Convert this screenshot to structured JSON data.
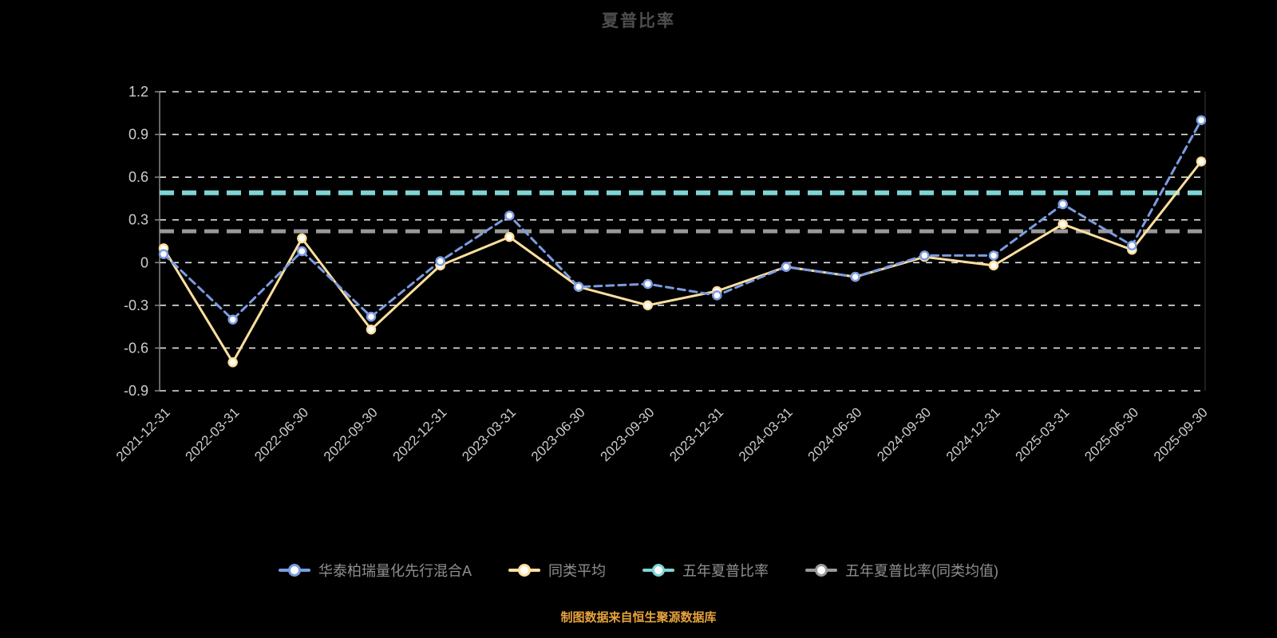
{
  "title": "夏普比率",
  "footnote": "制图数据来自恒生聚源数据库",
  "colors": {
    "background": "#000000",
    "title": "#4d4d4d",
    "axis_label": "#cccccc",
    "gridline": "#e6e6e6",
    "axis_line": "#888888",
    "legend_label": "#8f8f8f",
    "footnote": "#e8a23c"
  },
  "legend": [
    {
      "label": "华泰柏瑞量化先行混合A",
      "color": "#7b9ce1"
    },
    {
      "label": "同类平均",
      "color": "#ffdf9e"
    },
    {
      "label": "五年夏普比率",
      "color": "#7fd4d4"
    },
    {
      "label": "五年夏普比率(同类均值)",
      "color": "#999999"
    }
  ],
  "chart_data": {
    "type": "line",
    "title": "夏普比率",
    "categories": [
      "2021-12-31",
      "2022-03-31",
      "2022-06-30",
      "2022-09-30",
      "2022-12-31",
      "2023-03-31",
      "2023-06-30",
      "2023-09-30",
      "2023-12-31",
      "2024-03-31",
      "2024-06-30",
      "2024-09-30",
      "2024-12-31",
      "2025-03-31",
      "2025-06-30",
      "2025-09-30"
    ],
    "series": [
      {
        "name": "华泰柏瑞量化先行混合A",
        "color": "#7b9ce1",
        "line_style": "dashed",
        "values": [
          0.06,
          -0.4,
          0.08,
          -0.38,
          0.01,
          0.33,
          -0.17,
          -0.15,
          -0.23,
          -0.03,
          -0.1,
          0.05,
          0.05,
          0.41,
          0.12,
          1.0
        ]
      },
      {
        "name": "同类平均",
        "color": "#ffdf9e",
        "line_style": "solid",
        "values": [
          0.1,
          -0.7,
          0.17,
          -0.47,
          -0.02,
          0.18,
          -0.17,
          -0.3,
          -0.2,
          -0.03,
          -0.1,
          0.04,
          -0.02,
          0.27,
          0.09,
          0.71
        ]
      }
    ],
    "reference_lines": [
      {
        "name": "五年夏普比率",
        "value": 0.49,
        "color": "#7fd4d4",
        "width": 6
      },
      {
        "name": "五年夏普比率(同类均值)",
        "value": 0.22,
        "color": "#999999",
        "width": 5
      }
    ],
    "ylim": [
      -0.9,
      1.2
    ],
    "ytick_step": 0.3,
    "xlabel": "",
    "ylabel": "",
    "grid": true,
    "legend_position": "bottom"
  }
}
